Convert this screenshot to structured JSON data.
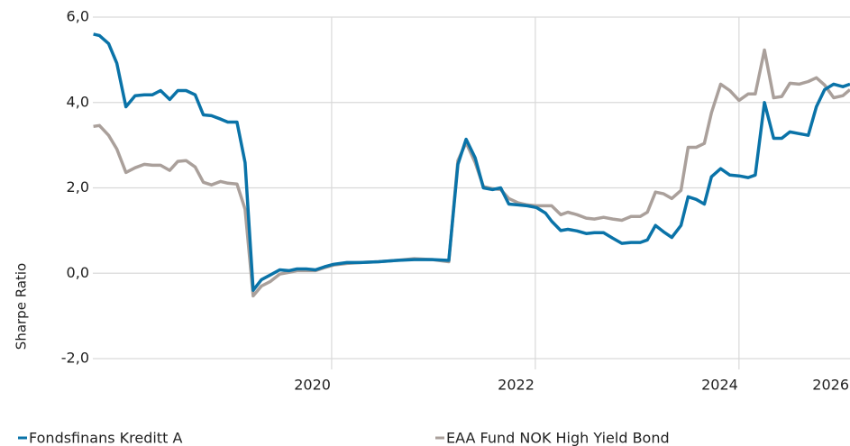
{
  "chart_data": {
    "type": "line",
    "y_label": "Sharpe Ratio",
    "x": [
      2017.66,
      2017.72,
      2017.81,
      2017.89,
      2017.98,
      2018.07,
      2018.16,
      2018.24,
      2018.32,
      2018.41,
      2018.49,
      2018.57,
      2018.66,
      2018.74,
      2018.82,
      2018.91,
      2018.98,
      2019.07,
      2019.15,
      2019.23,
      2019.31,
      2019.4,
      2019.49,
      2019.58,
      2019.66,
      2019.75,
      2019.84,
      2019.93,
      2020.02,
      2020.15,
      2020.28,
      2020.46,
      2020.64,
      2020.81,
      2020.99,
      2021.15,
      2021.24,
      2021.32,
      2021.41,
      2021.49,
      2021.58,
      2021.66,
      2021.74,
      2021.83,
      2021.92,
      2022.01,
      2022.1,
      2022.16,
      2022.25,
      2022.32,
      2022.41,
      2022.5,
      2022.58,
      2022.67,
      2022.76,
      2022.85,
      2022.94,
      2023.03,
      2023.1,
      2023.18,
      2023.26,
      2023.34,
      2023.43,
      2023.5,
      2023.58,
      2023.66,
      2023.73,
      2023.82,
      2023.91,
      2024.0,
      2024.09,
      2024.16,
      2024.25,
      2024.34,
      2024.42,
      2024.5,
      2024.59,
      2024.68,
      2024.76,
      2024.84,
      2024.93,
      2025.02,
      2025.09
    ],
    "series": [
      {
        "name": "EAA Fund NOK High Yield Bond",
        "color": "#aaa09b",
        "values": [
          3.44,
          3.46,
          3.23,
          2.91,
          2.36,
          2.47,
          2.55,
          2.53,
          2.53,
          2.41,
          2.62,
          2.64,
          2.49,
          2.13,
          2.07,
          2.15,
          2.11,
          2.09,
          1.5,
          -0.53,
          -0.3,
          -0.19,
          -0.02,
          0.02,
          0.06,
          0.06,
          0.06,
          0.13,
          0.19,
          0.23,
          0.25,
          0.27,
          0.3,
          0.34,
          0.32,
          0.27,
          2.64,
          3.06,
          2.59,
          2.03,
          1.98,
          1.96,
          1.75,
          1.65,
          1.6,
          1.58,
          1.58,
          1.58,
          1.37,
          1.43,
          1.37,
          1.29,
          1.27,
          1.31,
          1.27,
          1.24,
          1.33,
          1.33,
          1.43,
          1.9,
          1.86,
          1.75,
          1.94,
          2.95,
          2.95,
          3.04,
          3.76,
          4.43,
          4.28,
          4.05,
          4.2,
          4.2,
          5.23,
          4.11,
          4.14,
          4.45,
          4.43,
          4.49,
          4.58,
          4.41,
          4.11,
          4.16,
          4.3
        ]
      },
      {
        "name": "Fondsfinans Kreditt A",
        "color": "#0a73a8",
        "values": [
          5.6,
          5.57,
          5.38,
          4.92,
          3.9,
          4.16,
          4.18,
          4.18,
          4.28,
          4.07,
          4.28,
          4.28,
          4.18,
          3.71,
          3.69,
          3.61,
          3.54,
          3.54,
          2.59,
          -0.4,
          -0.15,
          -0.04,
          0.08,
          0.06,
          0.1,
          0.1,
          0.08,
          0.15,
          0.21,
          0.25,
          0.25,
          0.27,
          0.3,
          0.32,
          0.32,
          0.3,
          2.55,
          3.14,
          2.7,
          2.0,
          1.96,
          2.0,
          1.62,
          1.6,
          1.58,
          1.54,
          1.41,
          1.22,
          1.0,
          1.03,
          0.99,
          0.93,
          0.95,
          0.95,
          0.82,
          0.7,
          0.72,
          0.72,
          0.78,
          1.12,
          0.97,
          0.84,
          1.12,
          1.79,
          1.73,
          1.62,
          2.26,
          2.45,
          2.3,
          2.28,
          2.24,
          2.3,
          4.0,
          3.16,
          3.16,
          3.31,
          3.27,
          3.23,
          3.9,
          4.3,
          4.43,
          4.37,
          4.43
        ]
      }
    ],
    "xlim": [
      2017.655,
      2025.09
    ],
    "xticks": [
      2020,
      2022,
      2024,
      2026
    ],
    "ylim": [
      -2,
      6
    ],
    "yticks": [
      {
        "value": -2,
        "label": "-2,0"
      },
      {
        "value": 0,
        "label": "0,0"
      },
      {
        "value": 2,
        "label": "2,0"
      },
      {
        "value": 4,
        "label": "4,0"
      },
      {
        "value": 6,
        "label": "6,0"
      }
    ],
    "grid": true
  }
}
